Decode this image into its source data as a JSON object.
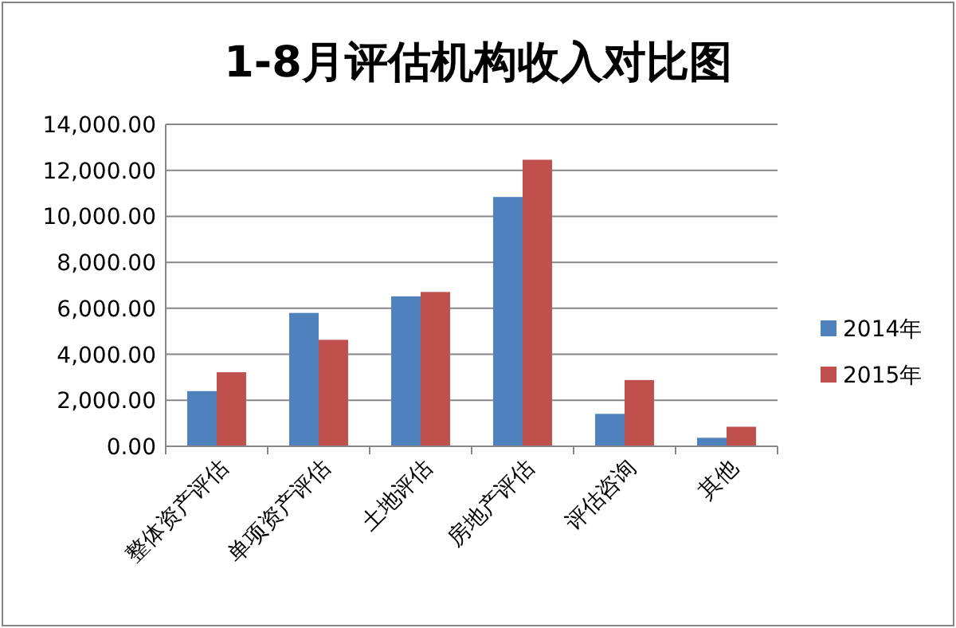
{
  "chart_data": {
    "type": "bar",
    "title": "1-8月评估机构收入对比图",
    "categories": [
      "整体资产评估",
      "单项资产评估",
      "土地评估",
      "房地产评估",
      "评估咨询",
      "其他"
    ],
    "series": [
      {
        "name": "2014年",
        "color": "#4f81bd",
        "values": [
          2400,
          5800,
          6520,
          10840,
          1410,
          370
        ]
      },
      {
        "name": "2015年",
        "color": "#c0504d",
        "values": [
          3220,
          4630,
          6710,
          12460,
          2880,
          850
        ]
      }
    ],
    "ylim": [
      0,
      14000
    ],
    "yticks": [
      {
        "value": 0,
        "label": "0.00"
      },
      {
        "value": 2000,
        "label": "2,000.00"
      },
      {
        "value": 4000,
        "label": "4,000.00"
      },
      {
        "value": 6000,
        "label": "6,000.00"
      },
      {
        "value": 8000,
        "label": "8,000.00"
      },
      {
        "value": 10000,
        "label": "10,000.00"
      },
      {
        "value": 12000,
        "label": "12,000.00"
      },
      {
        "value": 14000,
        "label": "14,000.00"
      }
    ],
    "grid": "y",
    "legend": "right"
  }
}
